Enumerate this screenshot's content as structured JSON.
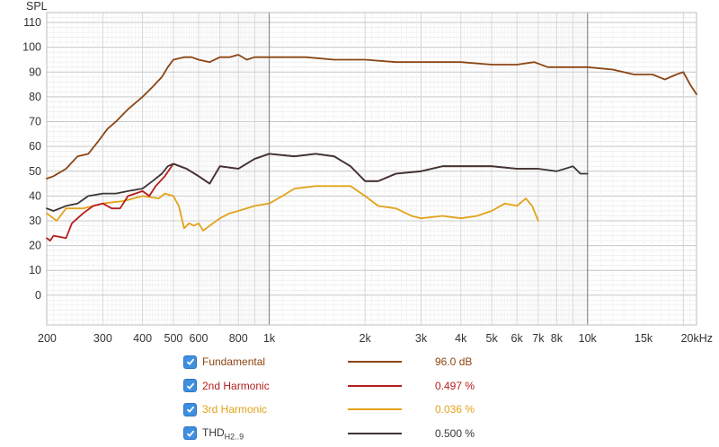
{
  "chart_data": {
    "type": "line",
    "ylabel": "SPL",
    "xlabel": "",
    "x_scale": "log",
    "xlim": [
      200,
      22000
    ],
    "ylim": [
      -12,
      114
    ],
    "y_ticks": [
      0,
      10,
      20,
      30,
      40,
      50,
      60,
      70,
      80,
      90,
      100,
      110
    ],
    "x_ticks": [
      200,
      300,
      400,
      500,
      600,
      800,
      1000,
      2000,
      3000,
      4000,
      5000,
      6000,
      7000,
      8000,
      10000,
      15000,
      20000
    ],
    "x_tick_labels": [
      "200",
      "300",
      "400",
      "500",
      "600",
      "800",
      "1k",
      "2k",
      "3k",
      "4k",
      "5k",
      "6k",
      "7k",
      "8k",
      "10k",
      "15k",
      "20kHz"
    ],
    "grid": true,
    "legend_position": "bottom",
    "series": [
      {
        "name": "Fundamental",
        "color": "#8b4513",
        "points": [
          [
            200,
            47
          ],
          [
            210,
            48
          ],
          [
            230,
            51
          ],
          [
            250,
            56
          ],
          [
            270,
            57
          ],
          [
            290,
            62
          ],
          [
            310,
            67
          ],
          [
            330,
            70
          ],
          [
            360,
            75
          ],
          [
            400,
            80
          ],
          [
            430,
            84
          ],
          [
            460,
            88
          ],
          [
            480,
            92
          ],
          [
            500,
            95
          ],
          [
            540,
            96
          ],
          [
            570,
            96
          ],
          [
            600,
            95
          ],
          [
            650,
            94
          ],
          [
            700,
            96
          ],
          [
            750,
            96
          ],
          [
            800,
            97
          ],
          [
            850,
            95
          ],
          [
            900,
            96
          ],
          [
            1000,
            96
          ],
          [
            1100,
            96
          ],
          [
            1300,
            96
          ],
          [
            1600,
            95
          ],
          [
            2000,
            95
          ],
          [
            2500,
            94
          ],
          [
            3000,
            94
          ],
          [
            4000,
            94
          ],
          [
            5000,
            93
          ],
          [
            6000,
            93
          ],
          [
            6800,
            94
          ],
          [
            7500,
            92
          ],
          [
            9000,
            92
          ],
          [
            10000,
            92
          ],
          [
            12000,
            91
          ],
          [
            14000,
            89
          ],
          [
            16000,
            89
          ],
          [
            17500,
            87
          ],
          [
            19000,
            89
          ],
          [
            20000,
            90
          ],
          [
            21000,
            85
          ],
          [
            22000,
            81
          ]
        ]
      },
      {
        "name": "2nd Harmonic",
        "value": "0.497 %",
        "color": "#b41e1e",
        "points": [
          [
            200,
            23
          ],
          [
            205,
            22
          ],
          [
            210,
            24
          ],
          [
            230,
            23
          ],
          [
            240,
            29
          ],
          [
            260,
            33
          ],
          [
            280,
            36
          ],
          [
            300,
            37
          ],
          [
            320,
            35
          ],
          [
            340,
            35
          ],
          [
            360,
            40
          ],
          [
            380,
            41
          ],
          [
            400,
            42
          ],
          [
            420,
            40
          ],
          [
            440,
            44
          ],
          [
            470,
            48
          ],
          [
            500,
            53
          ],
          [
            550,
            51
          ],
          [
            600,
            48
          ],
          [
            650,
            45
          ],
          [
            700,
            52
          ],
          [
            800,
            51
          ],
          [
            900,
            55
          ],
          [
            1000,
            57
          ],
          [
            1200,
            56
          ],
          [
            1400,
            57
          ],
          [
            1600,
            56
          ],
          [
            1800,
            52
          ],
          [
            2000,
            46
          ],
          [
            2200,
            46
          ],
          [
            2500,
            49
          ],
          [
            3000,
            50
          ],
          [
            3500,
            52
          ],
          [
            4000,
            52
          ],
          [
            5000,
            52
          ],
          [
            6000,
            51
          ],
          [
            7000,
            51
          ]
        ]
      },
      {
        "name": "3rd Harmonic",
        "value": "0.036 %",
        "color": "#e3a21a",
        "points": [
          [
            200,
            33
          ],
          [
            215,
            30
          ],
          [
            230,
            35
          ],
          [
            260,
            35
          ],
          [
            300,
            37
          ],
          [
            350,
            38
          ],
          [
            400,
            40
          ],
          [
            450,
            39
          ],
          [
            470,
            41
          ],
          [
            500,
            40
          ],
          [
            520,
            36
          ],
          [
            540,
            27
          ],
          [
            560,
            29
          ],
          [
            580,
            28
          ],
          [
            600,
            29
          ],
          [
            620,
            26
          ],
          [
            650,
            28
          ],
          [
            700,
            31
          ],
          [
            750,
            33
          ],
          [
            800,
            34
          ],
          [
            900,
            36
          ],
          [
            1000,
            37
          ],
          [
            1100,
            40
          ],
          [
            1200,
            43
          ],
          [
            1400,
            44
          ],
          [
            1600,
            44
          ],
          [
            1800,
            44
          ],
          [
            2000,
            40
          ],
          [
            2200,
            36
          ],
          [
            2500,
            35
          ],
          [
            2800,
            32
          ],
          [
            3000,
            31
          ],
          [
            3500,
            32
          ],
          [
            4000,
            31
          ],
          [
            4500,
            32
          ],
          [
            5000,
            34
          ],
          [
            5500,
            37
          ],
          [
            6000,
            36
          ],
          [
            6400,
            39
          ],
          [
            6700,
            36
          ],
          [
            7000,
            30
          ]
        ]
      },
      {
        "name": "THD H2..9",
        "value": "0.500 %",
        "color": "#3d3535",
        "points": [
          [
            200,
            35
          ],
          [
            210,
            34
          ],
          [
            230,
            36
          ],
          [
            250,
            37
          ],
          [
            270,
            40
          ],
          [
            300,
            41
          ],
          [
            330,
            41
          ],
          [
            360,
            42
          ],
          [
            400,
            43
          ],
          [
            430,
            46
          ],
          [
            460,
            49
          ],
          [
            480,
            52
          ],
          [
            500,
            53
          ],
          [
            550,
            51
          ],
          [
            600,
            48
          ],
          [
            650,
            45
          ],
          [
            700,
            52
          ],
          [
            800,
            51
          ],
          [
            900,
            55
          ],
          [
            1000,
            57
          ],
          [
            1200,
            56
          ],
          [
            1400,
            57
          ],
          [
            1600,
            56
          ],
          [
            1800,
            52
          ],
          [
            2000,
            46
          ],
          [
            2200,
            46
          ],
          [
            2500,
            49
          ],
          [
            3000,
            50
          ],
          [
            3500,
            52
          ],
          [
            4000,
            52
          ],
          [
            5000,
            52
          ],
          [
            6000,
            51
          ],
          [
            7000,
            51
          ],
          [
            8000,
            50
          ],
          [
            8500,
            51
          ],
          [
            9000,
            52
          ],
          [
            9500,
            49
          ],
          [
            10000,
            49
          ]
        ]
      }
    ]
  },
  "legend": [
    {
      "label": "Fundamental",
      "value": "96.0 dB",
      "color": "#8b4513",
      "checked": true
    },
    {
      "label": "2nd Harmonic",
      "value": "0.497 %",
      "color": "#b41e1e",
      "checked": true
    },
    {
      "label": "3rd Harmonic",
      "value": "0.036 %",
      "color": "#e3a21a",
      "checked": true
    },
    {
      "label": "THD",
      "label_sub": "H2..9",
      "value": "0.500 %",
      "color": "#3d3535",
      "checked": true
    }
  ]
}
